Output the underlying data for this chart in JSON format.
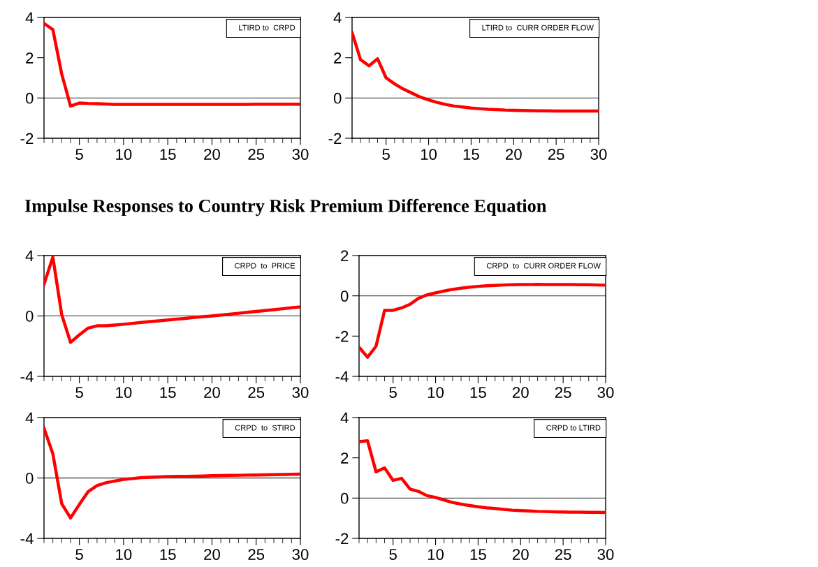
{
  "chart_data": [
    {
      "type": "line",
      "xlim": [
        1,
        30
      ],
      "xticks": [
        5,
        10,
        15,
        20,
        25,
        30
      ],
      "ylim": [
        -2,
        4
      ],
      "yticks": [
        -2,
        0,
        2,
        4
      ],
      "legend": "top right",
      "grid": false,
      "ref_lines": [
        {
          "axis": "y",
          "value": 0
        }
      ],
      "series": [
        {
          "name": "LTIRD to  CRPD",
          "color": "#ff0000",
          "x": [
            1,
            2,
            3,
            4,
            5,
            6,
            7,
            8,
            9,
            10,
            11,
            12,
            13,
            14,
            15,
            16,
            17,
            18,
            19,
            20,
            21,
            22,
            23,
            24,
            25,
            26,
            27,
            28,
            29,
            30
          ],
          "values": [
            3.7,
            3.4,
            1.2,
            -0.4,
            -0.25,
            -0.27,
            -0.28,
            -0.3,
            -0.32,
            -0.32,
            -0.32,
            -0.32,
            -0.32,
            -0.32,
            -0.32,
            -0.32,
            -0.32,
            -0.32,
            -0.32,
            -0.32,
            -0.32,
            -0.32,
            -0.32,
            -0.32,
            -0.31,
            -0.31,
            -0.31,
            -0.31,
            -0.31,
            -0.31
          ]
        }
      ]
    },
    {
      "type": "line",
      "xlim": [
        1,
        30
      ],
      "xticks": [
        5,
        10,
        15,
        20,
        25,
        30
      ],
      "ylim": [
        -2,
        4
      ],
      "yticks": [
        -2,
        0,
        2,
        4
      ],
      "legend": "top right",
      "grid": false,
      "ref_lines": [
        {
          "axis": "y",
          "value": 0
        }
      ],
      "series": [
        {
          "name": "LTIRD to  CURR ORDER FLOW",
          "color": "#ff0000",
          "x": [
            1,
            2,
            3,
            4,
            5,
            6,
            7,
            8,
            9,
            10,
            11,
            12,
            13,
            14,
            15,
            16,
            17,
            18,
            19,
            20,
            21,
            22,
            23,
            24,
            25,
            26,
            27,
            28,
            29,
            30
          ],
          "values": [
            3.25,
            1.9,
            1.6,
            1.95,
            1.0,
            0.7,
            0.45,
            0.25,
            0.05,
            -0.1,
            -0.22,
            -0.32,
            -0.4,
            -0.45,
            -0.5,
            -0.53,
            -0.56,
            -0.58,
            -0.6,
            -0.61,
            -0.62,
            -0.63,
            -0.64,
            -0.64,
            -0.65,
            -0.65,
            -0.65,
            -0.65,
            -0.65,
            -0.65
          ]
        }
      ]
    },
    {
      "type": "line",
      "title": "Impulse Responses to Country Risk Premium Difference Equation",
      "xlim": [
        1,
        30
      ],
      "xticks": [
        5,
        10,
        15,
        20,
        25,
        30
      ],
      "ylim": [
        -4,
        4
      ],
      "yticks": [
        -4,
        0,
        4
      ],
      "legend": "top right",
      "grid": false,
      "ref_lines": [
        {
          "axis": "y",
          "value": 0
        }
      ],
      "series": [
        {
          "name": "CRPD  to  PRICE",
          "color": "#ff0000",
          "x": [
            1,
            2,
            3,
            4,
            5,
            6,
            7,
            8,
            9,
            10,
            11,
            12,
            13,
            14,
            15,
            16,
            17,
            18,
            19,
            20,
            21,
            22,
            23,
            24,
            25,
            26,
            27,
            28,
            29,
            30
          ],
          "values": [
            2.1,
            3.9,
            0.1,
            -1.75,
            -1.25,
            -0.8,
            -0.65,
            -0.65,
            -0.6,
            -0.55,
            -0.49,
            -0.43,
            -0.37,
            -0.32,
            -0.27,
            -0.21,
            -0.16,
            -0.1,
            -0.05,
            0.0,
            0.06,
            0.12,
            0.18,
            0.24,
            0.3,
            0.36,
            0.42,
            0.48,
            0.54,
            0.6
          ]
        }
      ]
    },
    {
      "type": "line",
      "xlim": [
        1,
        30
      ],
      "xticks": [
        5,
        10,
        15,
        20,
        25,
        30
      ],
      "ylim": [
        -4,
        2
      ],
      "yticks": [
        -4,
        -2,
        0,
        2
      ],
      "legend": "top right",
      "grid": false,
      "ref_lines": [
        {
          "axis": "y",
          "value": 0
        }
      ],
      "series": [
        {
          "name": "CRPD  to  CURR ORDER FLOW",
          "color": "#ff0000",
          "x": [
            1,
            2,
            3,
            4,
            5,
            6,
            7,
            8,
            9,
            10,
            11,
            12,
            13,
            14,
            15,
            16,
            17,
            18,
            19,
            20,
            21,
            22,
            23,
            24,
            25,
            26,
            27,
            28,
            29,
            30
          ],
          "values": [
            -2.55,
            -3.05,
            -2.5,
            -0.72,
            -0.72,
            -0.6,
            -0.42,
            -0.12,
            0.05,
            0.15,
            0.24,
            0.32,
            0.38,
            0.43,
            0.47,
            0.5,
            0.52,
            0.54,
            0.55,
            0.56,
            0.56,
            0.57,
            0.56,
            0.56,
            0.56,
            0.56,
            0.55,
            0.55,
            0.54,
            0.53
          ]
        }
      ]
    },
    {
      "type": "line",
      "xlim": [
        1,
        30
      ],
      "xticks": [
        5,
        10,
        15,
        20,
        25,
        30
      ],
      "ylim": [
        -4,
        4
      ],
      "yticks": [
        -4,
        0,
        4
      ],
      "legend": "top right",
      "grid": false,
      "ref_lines": [
        {
          "axis": "y",
          "value": 0
        }
      ],
      "series": [
        {
          "name": "CRPD  to  STIRD",
          "color": "#ff0000",
          "x": [
            1,
            2,
            3,
            4,
            5,
            6,
            7,
            8,
            9,
            10,
            11,
            12,
            13,
            14,
            15,
            16,
            17,
            18,
            19,
            20,
            21,
            22,
            23,
            24,
            25,
            26,
            27,
            28,
            29,
            30
          ],
          "values": [
            3.3,
            1.6,
            -1.7,
            -2.65,
            -1.75,
            -0.9,
            -0.5,
            -0.32,
            -0.2,
            -0.1,
            -0.04,
            0.02,
            0.05,
            0.07,
            0.09,
            0.1,
            0.11,
            0.12,
            0.13,
            0.15,
            0.16,
            0.17,
            0.18,
            0.19,
            0.2,
            0.21,
            0.22,
            0.23,
            0.24,
            0.25
          ]
        }
      ]
    },
    {
      "type": "line",
      "xlim": [
        1,
        30
      ],
      "xticks": [
        5,
        10,
        15,
        20,
        25,
        30
      ],
      "ylim": [
        -2,
        4
      ],
      "yticks": [
        -2,
        0,
        2,
        4
      ],
      "legend": "top right",
      "grid": false,
      "ref_lines": [
        {
          "axis": "y",
          "value": 0
        }
      ],
      "series": [
        {
          "name": "CRPD to LTIRD",
          "color": "#ff0000",
          "x": [
            1,
            2,
            3,
            4,
            5,
            6,
            7,
            8,
            9,
            10,
            11,
            12,
            13,
            14,
            15,
            16,
            17,
            18,
            19,
            20,
            21,
            22,
            23,
            24,
            25,
            26,
            27,
            28,
            29,
            30
          ],
          "values": [
            2.8,
            2.85,
            1.3,
            1.5,
            0.88,
            0.98,
            0.45,
            0.33,
            0.12,
            0.03,
            -0.1,
            -0.22,
            -0.3,
            -0.37,
            -0.43,
            -0.48,
            -0.52,
            -0.56,
            -0.6,
            -0.62,
            -0.64,
            -0.66,
            -0.67,
            -0.68,
            -0.69,
            -0.7,
            -0.7,
            -0.71,
            -0.71,
            -0.72
          ]
        }
      ]
    }
  ]
}
